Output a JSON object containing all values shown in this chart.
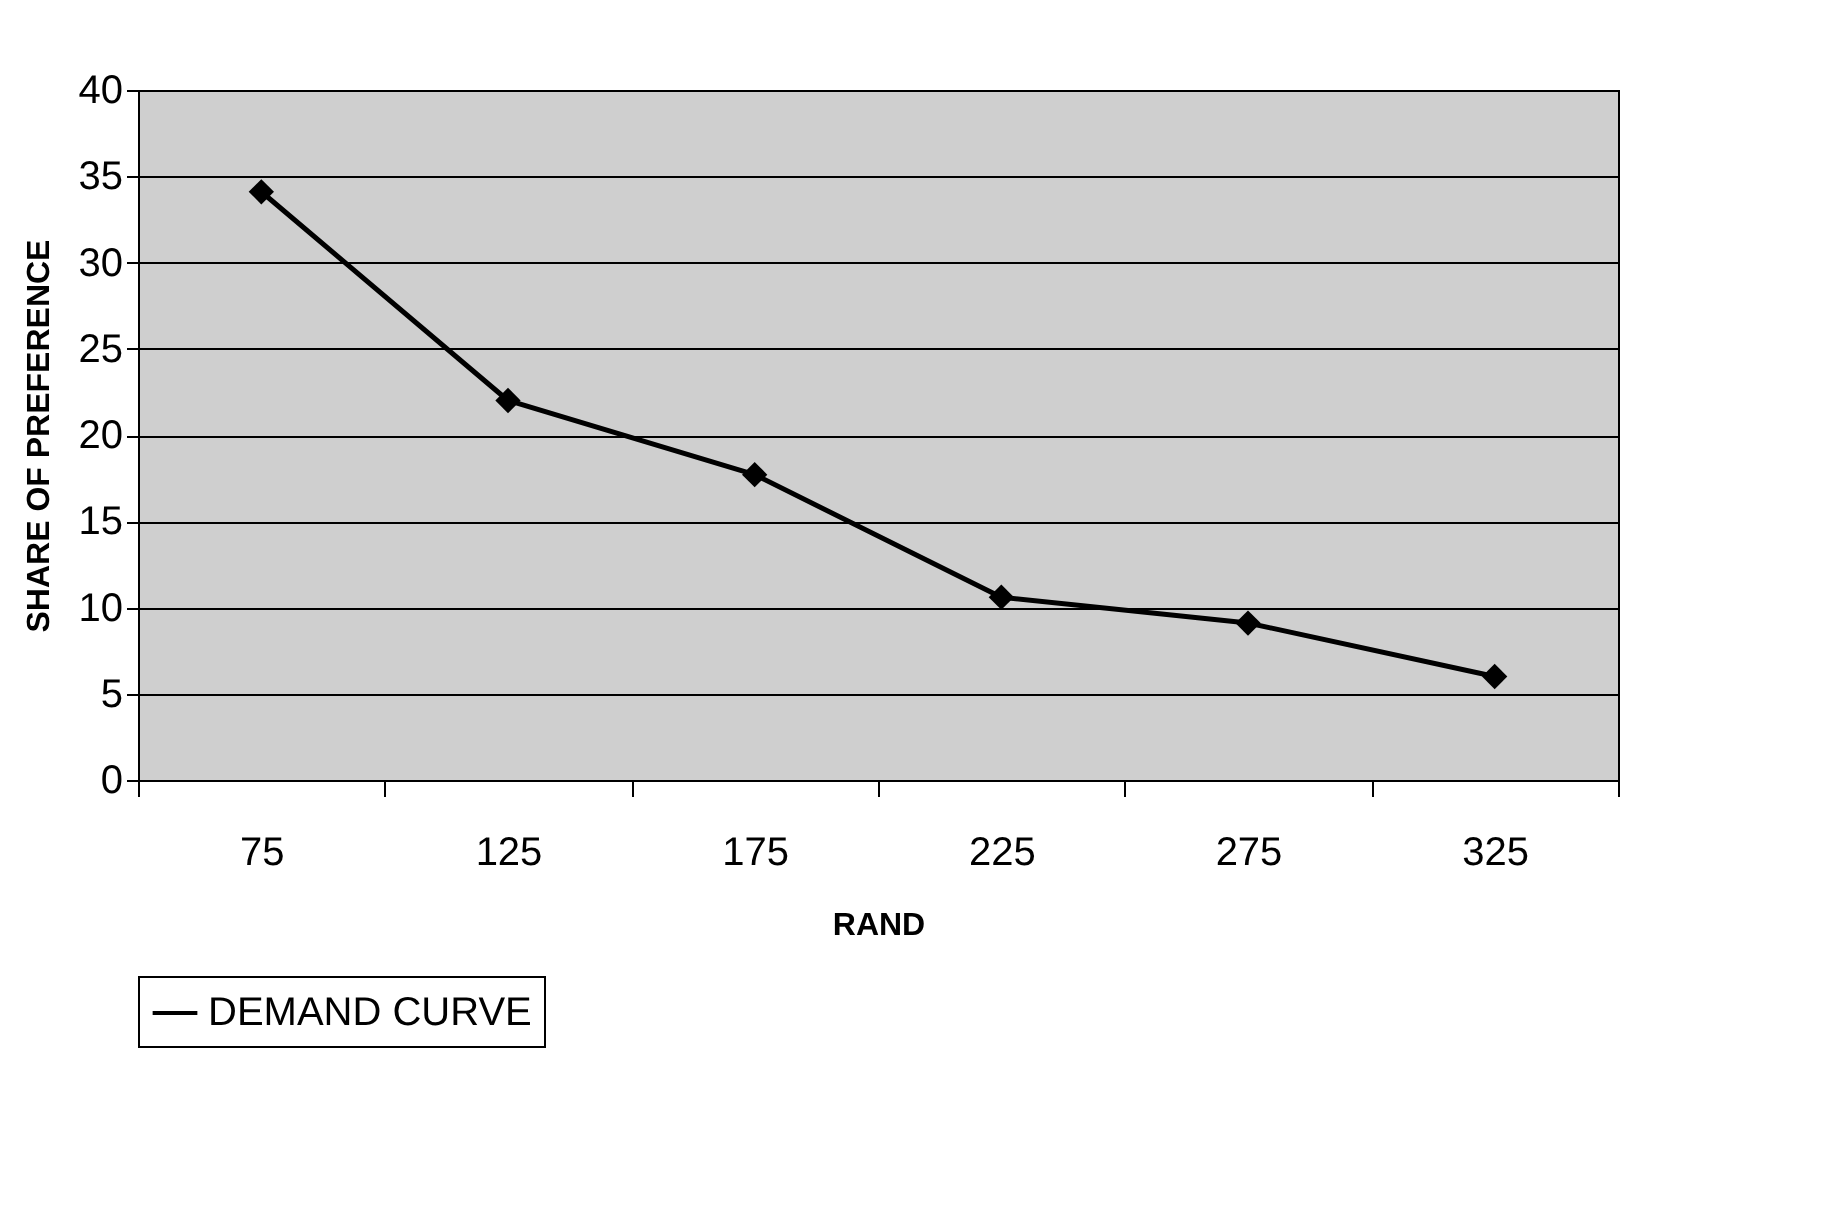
{
  "chart_data": {
    "type": "line",
    "categories": [
      "75",
      "125",
      "175",
      "225",
      "275",
      "325"
    ],
    "xlabel": "RAND",
    "ylabel": "SHARE OF PREFERENCE",
    "series": [
      {
        "name": "DEMAND CURVE",
        "color": "#000000",
        "values": [
          34.1,
          22.0,
          17.7,
          10.6,
          9.1,
          6.0
        ]
      }
    ],
    "ylim": [
      0,
      40
    ],
    "yticks": [
      0,
      5,
      10,
      15,
      20,
      25,
      30,
      35,
      40
    ],
    "grid": "y",
    "legend": "bottom",
    "marker": "diamond",
    "line_style": "solid"
  }
}
